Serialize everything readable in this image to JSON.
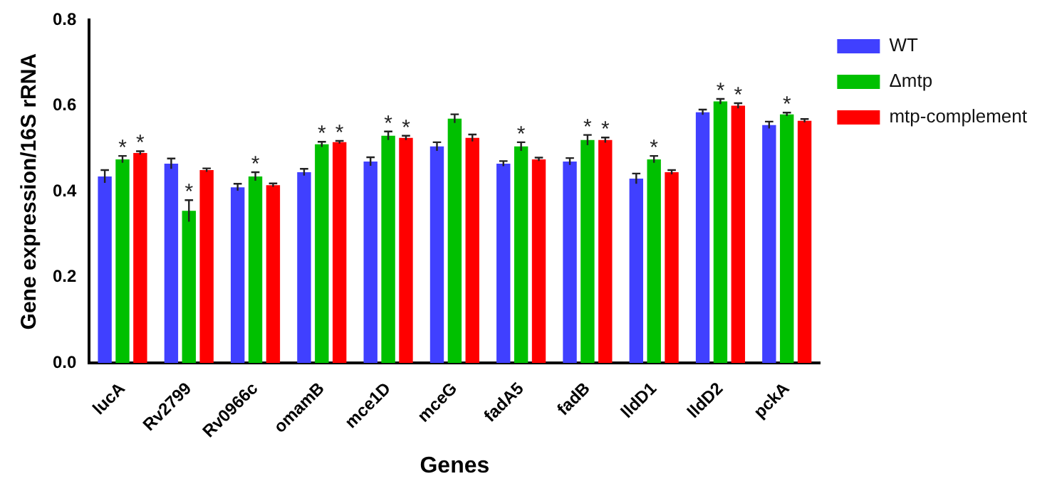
{
  "chart_data": {
    "type": "bar",
    "xlabel": "Genes",
    "ylabel": "Gene expression/16S rRNA",
    "categories": [
      "lucA",
      "Rv2799",
      "Rv0966c",
      "omamB",
      "mce1D",
      "mceG",
      "fadA5",
      "fadB",
      "lldD1",
      "lldD2",
      "pckA"
    ],
    "series": [
      {
        "name": "WT",
        "color": "#4040ff",
        "values": [
          0.435,
          0.465,
          0.41,
          0.445,
          0.47,
          0.505,
          0.465,
          0.47,
          0.43,
          0.585,
          0.555
        ],
        "errors": [
          0.015,
          0.012,
          0.008,
          0.008,
          0.01,
          0.01,
          0.006,
          0.008,
          0.012,
          0.006,
          0.008
        ],
        "value_labels": [
          null,
          null,
          null,
          null,
          null,
          null,
          null,
          null,
          null,
          null,
          null
        ]
      },
      {
        "name": "Δmtp",
        "color": "#00c000",
        "values": [
          0.475,
          0.355,
          0.435,
          0.51,
          0.53,
          0.57,
          0.505,
          0.52,
          0.475,
          0.61,
          0.58
        ],
        "errors": [
          0.008,
          0.025,
          0.01,
          0.006,
          0.01,
          0.01,
          0.01,
          0.012,
          0.008,
          0.006,
          0.004
        ],
        "value_labels": [
          "*",
          "*",
          "*",
          "*",
          "*",
          null,
          "*",
          "*",
          "*",
          "*",
          "*"
        ]
      },
      {
        "name": "mtp-complement",
        "color": "#ff0000",
        "values": [
          0.49,
          0.45,
          0.415,
          0.515,
          0.525,
          0.525,
          0.475,
          0.52,
          0.445,
          0.6,
          0.565
        ],
        "errors": [
          0.004,
          0.004,
          0.004,
          0.003,
          0.005,
          0.008,
          0.004,
          0.006,
          0.005,
          0.006,
          0.004
        ],
        "value_labels": [
          "*",
          null,
          null,
          "*",
          "*",
          null,
          null,
          "*",
          null,
          "*",
          null
        ]
      }
    ],
    "ylim": [
      0,
      0.8
    ],
    "yticks": [
      {
        "value": 0,
        "label": "0.0"
      },
      {
        "value": 0.2,
        "label": "0.2"
      },
      {
        "value": 0.4,
        "label": "0.4"
      },
      {
        "value": 0.6,
        "label": "0.6"
      },
      {
        "value": 0.8,
        "label": "0.8"
      }
    ],
    "grid": false,
    "legend": "top right"
  }
}
